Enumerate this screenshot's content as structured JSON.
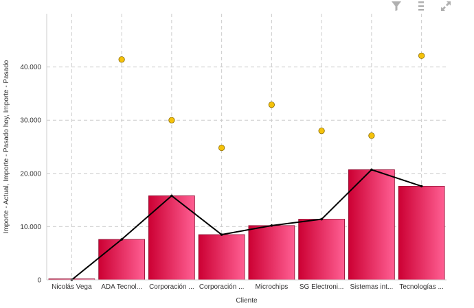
{
  "toolbar": {
    "items": [
      {
        "name": "filter-icon"
      },
      {
        "name": "menu-icon"
      },
      {
        "name": "expand-icon"
      }
    ]
  },
  "chart_data": {
    "type": "bar",
    "categories": [
      "Nicolás Vega",
      "ADA Tecnol...",
      "Corporación ...",
      "Corporación ...",
      "Microchips",
      "SG Electroni...",
      "Sistemas int...",
      "Tecnologías ..."
    ],
    "series": [
      {
        "name": "Importe - Actual",
        "type": "bar",
        "values": [
          0,
          7600,
          15800,
          8500,
          10200,
          11400,
          20700,
          17600
        ],
        "color": "#d6063c"
      },
      {
        "name": "Importe - Pasado hoy",
        "type": "line",
        "values": [
          0,
          7600,
          15800,
          8500,
          10200,
          11400,
          20700,
          17600
        ],
        "color": "#000000"
      },
      {
        "name": "Importe - Pasado",
        "type": "scatter",
        "values": [
          null,
          41400,
          30000,
          24800,
          32900,
          28000,
          27100,
          42100
        ],
        "color": "#f5c20a"
      }
    ],
    "title": "",
    "xlabel": "Cliente",
    "ylabel": "Importe - Actual, Importe - Pasado hoy, Importe - Pasado",
    "yticks": [
      "0",
      "10.000",
      "20.000",
      "30.000",
      "40.000"
    ],
    "ytick_values": [
      0,
      10000,
      20000,
      30000,
      40000
    ],
    "ylim": [
      0,
      50000
    ],
    "grid": true,
    "legend": "none"
  }
}
